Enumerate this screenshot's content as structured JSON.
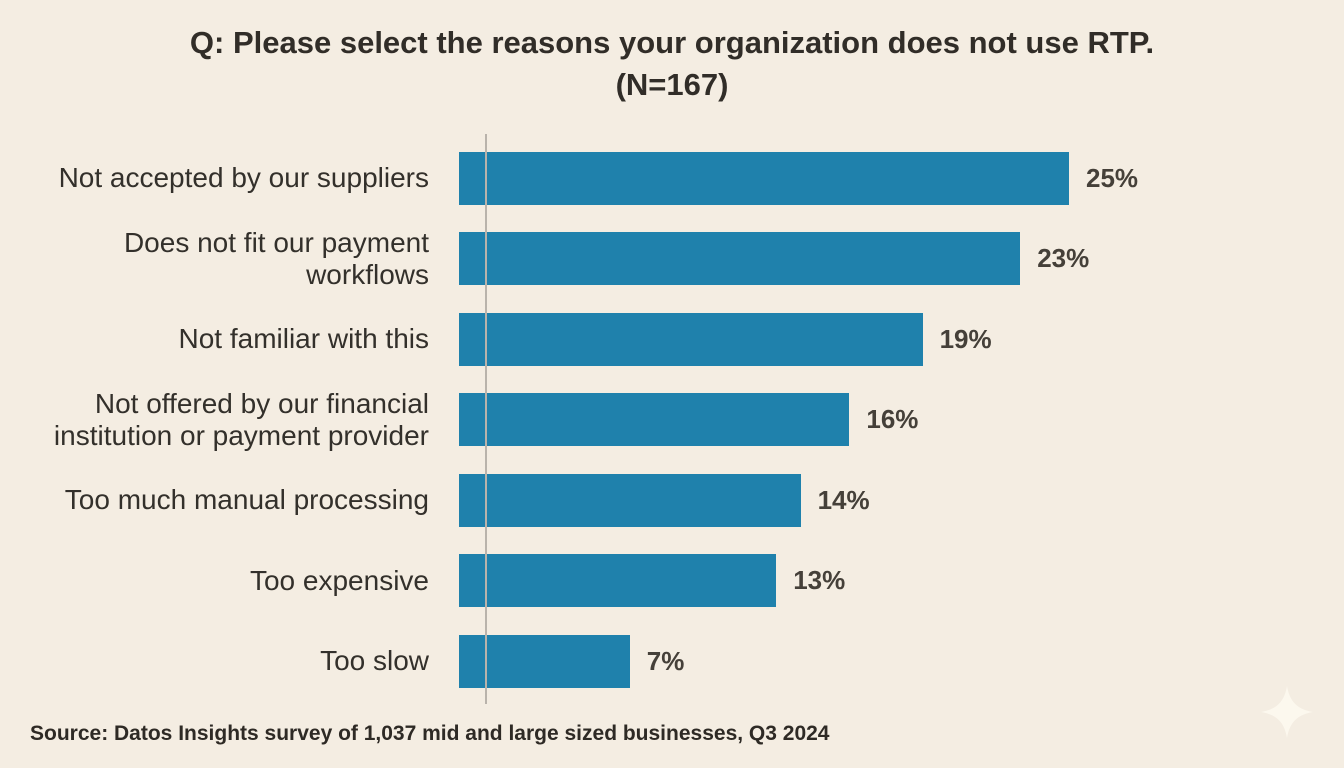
{
  "page": {
    "background_color": "#f4ede2"
  },
  "chart_data": {
    "type": "bar",
    "orientation": "horizontal",
    "title": "Q: Please select the reasons your organization does not use RTP.",
    "subtitle": "(N=167)",
    "categories": [
      "Not accepted by our suppliers",
      "Does not fit our payment workflows",
      "Not familiar with this",
      "Not offered by our financial institution or payment provider",
      "Too much manual processing",
      "Too expensive",
      "Too slow"
    ],
    "values": [
      25,
      23,
      19,
      16,
      14,
      13,
      7
    ],
    "value_labels": [
      "25%",
      "23%",
      "19%",
      "16%",
      "14%",
      "13%",
      "7%"
    ],
    "value_suffix": "%",
    "xlim": [
      0,
      25
    ],
    "grid": false,
    "legend": false,
    "bar_color": "#1f81ac",
    "axis_line_color": "#b9b3ab",
    "value_label_color": "#454039",
    "category_label_color": "#33302b",
    "source": "Source: Datos Insights survey of 1,037 mid and large sized businesses, Q3 2024"
  },
  "icons": {
    "sparkle": "four-point-star"
  }
}
